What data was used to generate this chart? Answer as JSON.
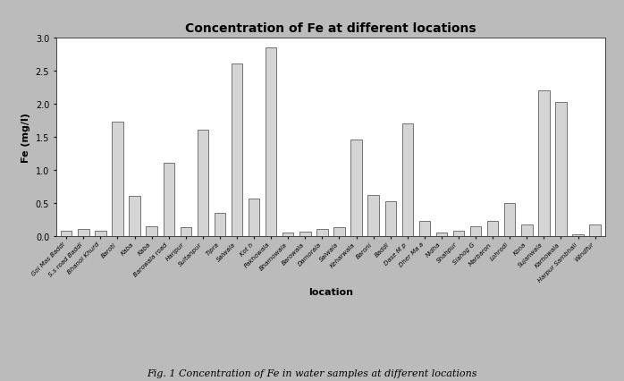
{
  "title": "Concentration of Fe at different locations",
  "xlabel": "location",
  "ylabel": "Fe (mg/l)",
  "background_color": "#bbbbbb",
  "plot_bg_color": "#ffffff",
  "bar_color": "#d4d4d4",
  "bar_edge_color": "#444444",
  "ylim": [
    0,
    3.0
  ],
  "yticks": [
    0.0,
    0.5,
    1.0,
    1.5,
    2.0,
    2.5,
    3.0
  ],
  "ytick_labels": [
    "0.0",
    "0.5",
    "1.0",
    "1.5",
    "2.0",
    "2.5",
    "3.0"
  ],
  "categories": [
    "Gol Mas Baddi",
    "S.s road Baddi",
    "Bhanoi Khurd",
    "Baroti",
    "Kaba",
    "Kaba",
    "Barowala road",
    "Haripur",
    "Sultanpur",
    "Tipra",
    "Salwala",
    "Kot h",
    "Pakhowala",
    "Bhamowala",
    "Barowala",
    "Damorala",
    "Salwala",
    "Keharwala",
    "Baroni",
    "Baddi",
    "Dase M p",
    "Dher Ma a",
    "Nidha",
    "Shahpur",
    "Slahog G",
    "Marbaron",
    "Lohrodi",
    "Kona",
    "Sujanwala",
    "Karhowala",
    "Harpur Sambhali",
    "Windfur"
  ],
  "values": [
    0.08,
    0.1,
    0.08,
    1.72,
    0.6,
    0.15,
    1.1,
    0.13,
    1.6,
    0.35,
    2.6,
    0.57,
    2.85,
    0.05,
    0.07,
    0.1,
    0.13,
    1.45,
    0.62,
    0.52,
    1.7,
    0.22,
    0.05,
    0.08,
    0.15,
    0.22,
    0.49,
    0.17,
    2.2,
    2.02,
    0.02,
    0.17
  ],
  "caption": "Fig. 1 Concentration of Fe in water samples at different locations",
  "title_fontsize": 10,
  "axis_label_fontsize": 8,
  "tick_fontsize": 7,
  "xtick_fontsize": 5,
  "caption_fontsize": 8
}
